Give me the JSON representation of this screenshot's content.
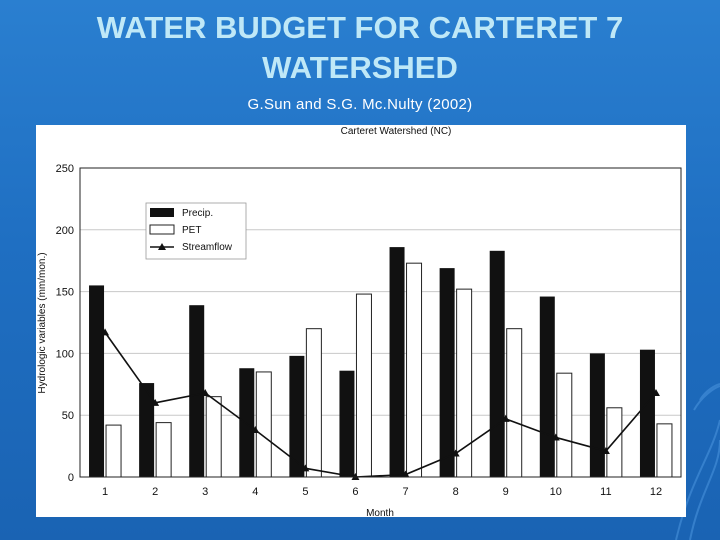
{
  "slide": {
    "title_line1": "WATER BUDGET FOR CARTERET 7",
    "title_line2": "WATERSHED",
    "citation": "G.Sun and S.G. Mc.Nulty (2002)"
  },
  "colors": {
    "background": "#1f6fc2",
    "title": "#bfe8f7",
    "precip_bar": "#111111",
    "pet_bar": "#ffffff"
  },
  "chart_data": {
    "type": "bar",
    "title": "Carteret Watershed (NC)",
    "xlabel": "Month",
    "ylabel": "Hydrologic variables (mm/mon.)",
    "ylim": [
      0,
      250
    ],
    "yticks": [
      "0",
      "50",
      "100",
      "150",
      "200",
      "250"
    ],
    "categories": [
      "1",
      "2",
      "3",
      "4",
      "5",
      "6",
      "7",
      "8",
      "9",
      "10",
      "11",
      "12"
    ],
    "grid": "horizontal",
    "legend_position": "top-left",
    "series": [
      {
        "name": "Precip.",
        "kind": "bar",
        "values": [
          155,
          76,
          139,
          88,
          98,
          86,
          186,
          169,
          183,
          146,
          100,
          103
        ]
      },
      {
        "name": "PET",
        "kind": "bar",
        "values": [
          42,
          44,
          65,
          85,
          120,
          148,
          173,
          152,
          120,
          84,
          56,
          43
        ]
      },
      {
        "name": "Streamflow",
        "kind": "line",
        "values": [
          117,
          60,
          68,
          38,
          7,
          0,
          2,
          19,
          47,
          32,
          21,
          68
        ]
      }
    ]
  }
}
